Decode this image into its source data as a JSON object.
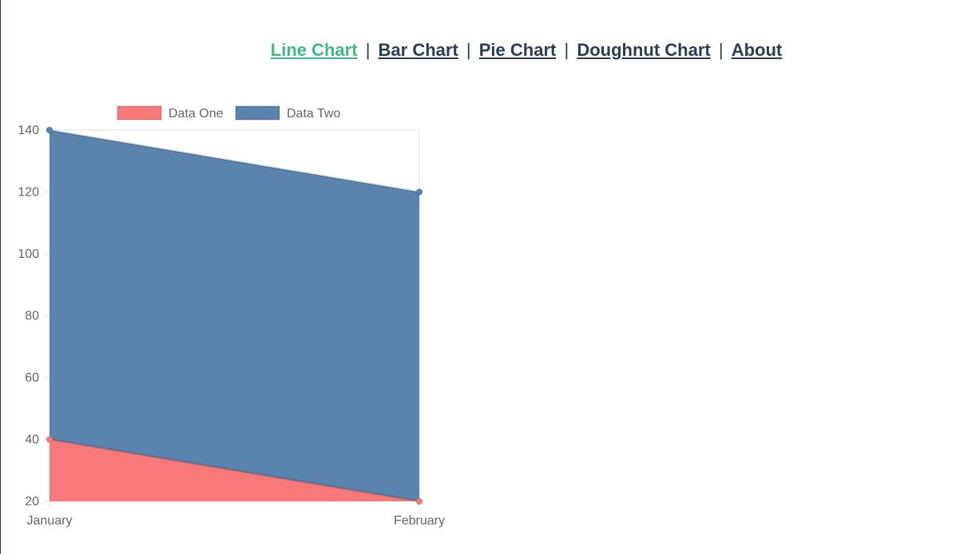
{
  "nav": {
    "items": [
      {
        "label": "Line Chart",
        "active": true
      },
      {
        "label": "Bar Chart",
        "active": false
      },
      {
        "label": "Pie Chart",
        "active": false
      },
      {
        "label": "Doughnut Chart",
        "active": false
      },
      {
        "label": "About",
        "active": false
      }
    ],
    "separator": "|"
  },
  "colors": {
    "accent": "#42b983",
    "nav_text": "#2c3e50",
    "data_one_fill": "#f87979",
    "data_two_fill": "#5884ad",
    "axis_text": "#666666",
    "grid": "#e0e0e0"
  },
  "chart_data": {
    "type": "area",
    "stacked": false,
    "categories": [
      "January",
      "February"
    ],
    "series": [
      {
        "name": "Data One",
        "values": [
          40,
          20
        ],
        "color": "#f87979"
      },
      {
        "name": "Data Two",
        "values": [
          140,
          120
        ],
        "color": "#5884ad"
      }
    ],
    "ylim": [
      20,
      140
    ],
    "yticks": [
      20,
      40,
      60,
      80,
      100,
      120,
      140
    ],
    "legend_position": "top"
  }
}
